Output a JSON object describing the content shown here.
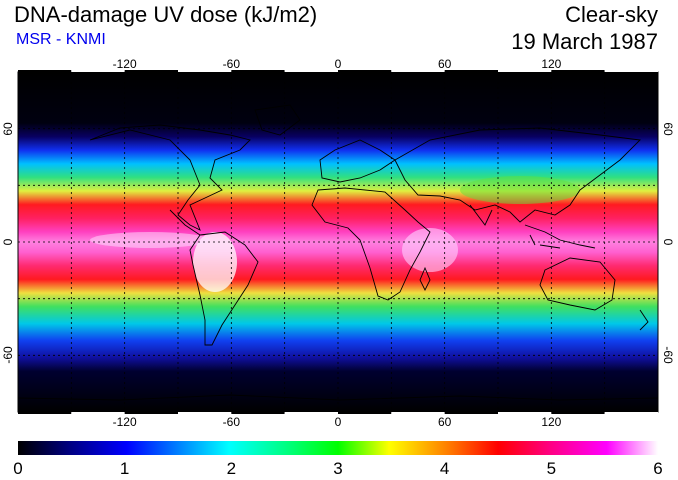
{
  "header": {
    "title": "DNA-damage UV dose (kJ/m2)",
    "subtitle": "MSR - KNMI",
    "sky_condition": "Clear-sky",
    "date": "19 March 1987"
  },
  "map": {
    "lon_ticks": [
      "-120",
      "-60",
      "0",
      "60",
      "120"
    ],
    "lat_ticks": [
      "60",
      "0",
      "-60"
    ],
    "lon_range": [
      -180,
      180
    ],
    "lat_range": [
      -90,
      90
    ],
    "colors": {
      "ocean_polar": "#000000",
      "low": "#1020e0",
      "mid": "#20e060",
      "high": "#ff2030",
      "peak": "#ff40c0",
      "max": "#ffffff"
    }
  },
  "colorbar": {
    "labels": [
      "0",
      "1",
      "2",
      "3",
      "4",
      "5",
      "6"
    ],
    "min": 0,
    "max": 6
  }
}
